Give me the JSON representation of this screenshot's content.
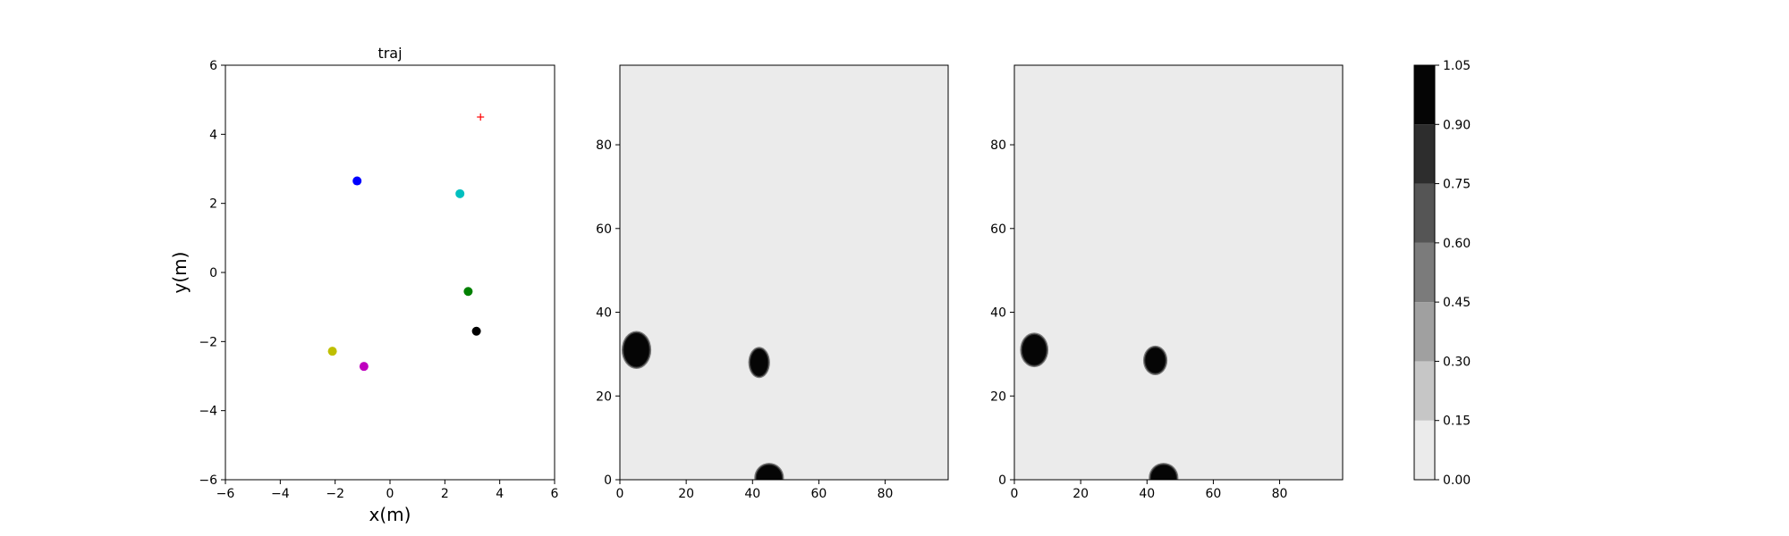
{
  "chart_data": [
    {
      "type": "scatter",
      "title": "traj",
      "xlabel": "x(m)",
      "ylabel": "y(m)",
      "xlim": [
        -6,
        6
      ],
      "ylim": [
        -6,
        6
      ],
      "xticks": [
        -6,
        -4,
        -2,
        0,
        2,
        4,
        6
      ],
      "yticks": [
        -6,
        -4,
        -2,
        0,
        2,
        4,
        6
      ],
      "points": [
        {
          "x": -1.2,
          "y": 2.65,
          "color": "#0000ff",
          "marker": "dot"
        },
        {
          "x": 2.55,
          "y": 2.28,
          "color": "#00bfbf",
          "marker": "dot"
        },
        {
          "x": 2.85,
          "y": -0.55,
          "color": "#008000",
          "marker": "dot"
        },
        {
          "x": 3.15,
          "y": -1.7,
          "color": "#000000",
          "marker": "dot"
        },
        {
          "x": -2.1,
          "y": -2.28,
          "color": "#bfbf00",
          "marker": "dot"
        },
        {
          "x": -0.95,
          "y": -2.72,
          "color": "#bf00bf",
          "marker": "dot"
        },
        {
          "x": 3.3,
          "y": 4.5,
          "color": "#ff0000",
          "marker": "plus"
        }
      ]
    },
    {
      "type": "heatmap",
      "title": "",
      "xlim": [
        0,
        99
      ],
      "ylim": [
        0,
        99
      ],
      "xticks": [
        0,
        20,
        40,
        60,
        80
      ],
      "yticks": [
        0,
        20,
        40,
        60,
        80
      ],
      "background_level": 0.05,
      "blobs": [
        {
          "x": 5,
          "y": 31,
          "rx": 3.8,
          "ry": 4.0,
          "level": 1.0
        },
        {
          "x": 42,
          "y": 28,
          "rx": 2.6,
          "ry": 3.2,
          "level": 1.0
        },
        {
          "x": 45,
          "y": 0.5,
          "rx": 3.8,
          "ry": 3.0,
          "level": 1.0
        }
      ]
    },
    {
      "type": "heatmap",
      "title": "",
      "xlim": [
        0,
        99
      ],
      "ylim": [
        0,
        99
      ],
      "xticks": [
        0,
        20,
        40,
        60,
        80
      ],
      "yticks": [
        0,
        20,
        40,
        60,
        80
      ],
      "background_level": 0.05,
      "blobs": [
        {
          "x": 6,
          "y": 31,
          "rx": 3.6,
          "ry": 3.6,
          "level": 1.0
        },
        {
          "x": 42.5,
          "y": 28.5,
          "rx": 3.0,
          "ry": 3.0,
          "level": 1.0
        },
        {
          "x": 45,
          "y": 0.5,
          "rx": 3.8,
          "ry": 3.0,
          "level": 1.0
        }
      ]
    }
  ],
  "colorbar": {
    "min": 0.0,
    "max": 1.05,
    "levels": [
      0.0,
      0.15,
      0.3,
      0.45,
      0.6,
      0.75,
      0.9,
      1.05
    ],
    "labels": [
      "0.00",
      "0.15",
      "0.30",
      "0.45",
      "0.60",
      "0.75",
      "0.90",
      "1.05"
    ],
    "colors": [
      "#ebebeb",
      "#c6c6c6",
      "#a0a0a0",
      "#7b7b7b",
      "#555555",
      "#2d2d2d",
      "#050505"
    ]
  }
}
